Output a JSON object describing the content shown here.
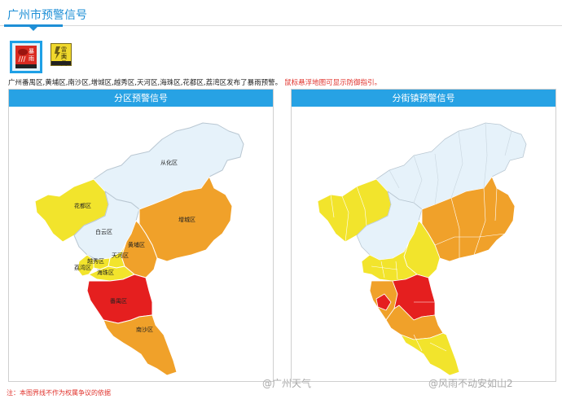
{
  "page": {
    "title": "广州市预警信号"
  },
  "signals": [
    {
      "name": "rainstorm-red",
      "line1": "暴",
      "line2": "雨",
      "active": true,
      "color": "#d92a20"
    },
    {
      "name": "thunder-gale-yellow",
      "line1": "雷雨",
      "line2": "大风",
      "active": false,
      "color": "#f0d82c"
    }
  ],
  "info": {
    "text": "广州番禺区,黄埔区,南沙区,增城区,越秀区,天河区,海珠区,花都区,荔湾区发布了暴雨预警。",
    "hint": "鼠标悬浮地图可显示防御指引。"
  },
  "panels": {
    "district_title": "分区预警信号",
    "street_title": "分街镇预警信号"
  },
  "districts": {
    "conghua": "从化区",
    "huadu": "花都区",
    "baiyun": "白云区",
    "zengcheng": "增城区",
    "huangpu": "黄埔区",
    "tianhe": "天河区",
    "yuexiu": "越秀区",
    "liwan": "荔湾区",
    "haizhu": "海珠区",
    "panyu": "番禺区",
    "nansha": "南沙区"
  },
  "colors": {
    "none": "#e6f2fa",
    "yellow": "#f2e42c",
    "orange": "#f0a12a",
    "red": "#e51f1f",
    "border": "#b9c7d2"
  },
  "footnote": "注：本图界线不作为权属争议的依据",
  "watermarks": [
    "@广州天气",
    "@风雨不动安如山2"
  ]
}
